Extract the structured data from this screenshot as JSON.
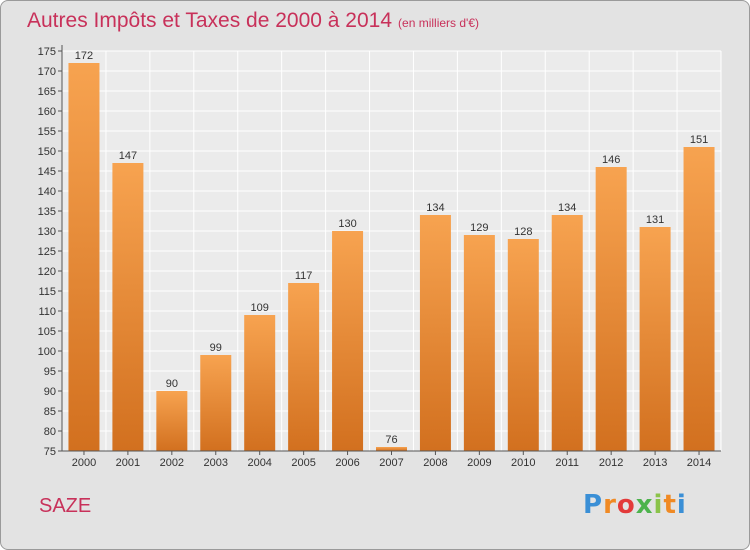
{
  "title": "Autres Impôts et Taxes de 2000 à 2014",
  "subtitle": "(en milliers d'€)",
  "commune": "SAZE",
  "logo_text": "Proxiti",
  "colors": {
    "title": "#c8315a",
    "bar_top": "#f7a350",
    "bar_bottom": "#d2701f",
    "background": "#e3e3e3"
  },
  "chart_data": {
    "type": "bar",
    "categories": [
      "2000",
      "2001",
      "2002",
      "2003",
      "2004",
      "2005",
      "2006",
      "2007",
      "2008",
      "2009",
      "2010",
      "2011",
      "2012",
      "2013",
      "2014"
    ],
    "values": [
      172,
      147,
      90,
      99,
      109,
      117,
      130,
      76,
      134,
      129,
      128,
      134,
      146,
      131,
      151
    ],
    "ylim": [
      75,
      175
    ],
    "yticks": [
      75,
      80,
      85,
      90,
      95,
      100,
      105,
      110,
      115,
      120,
      125,
      130,
      135,
      140,
      145,
      150,
      155,
      160,
      165,
      170,
      175
    ],
    "grid": true,
    "data_labels": true
  }
}
